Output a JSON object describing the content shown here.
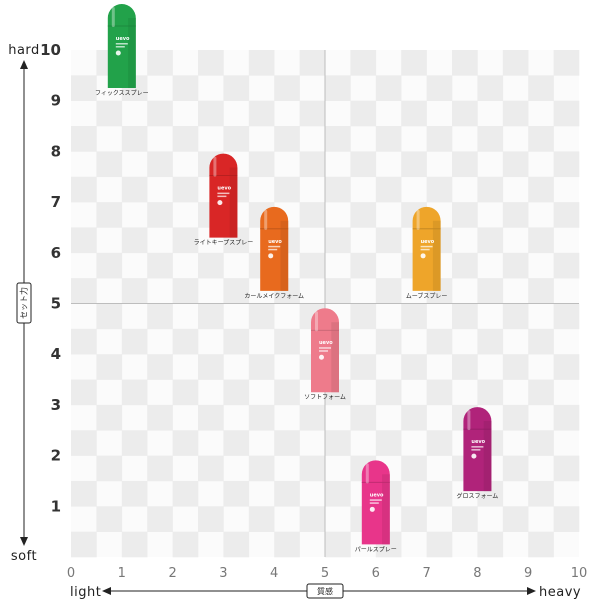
{
  "chart_data": {
    "type": "scatter",
    "xlim": [
      0,
      10
    ],
    "ylim": [
      0,
      10
    ],
    "x_ticks": [
      "0",
      "1",
      "2",
      "3",
      "4",
      "5",
      "6",
      "7",
      "8",
      "9",
      "10"
    ],
    "y_ticks": [
      "1",
      "2",
      "3",
      "4",
      "5",
      "6",
      "7",
      "8",
      "9",
      "10"
    ],
    "x_axis": {
      "start_label": "light",
      "end_label": "heavy",
      "name": "質感"
    },
    "y_axis": {
      "start_label": "soft",
      "end_label": "hard",
      "name": "セット力"
    },
    "grid": true,
    "quadrant_lines": {
      "x": 5,
      "y": 5
    },
    "brand_text": "uevo",
    "points": [
      {
        "label": "フィックススプレー",
        "x": 1,
        "y": 9.25,
        "color": "#22a24a"
      },
      {
        "label": "ライトキープスプレー",
        "x": 3,
        "y": 6.3,
        "color": "#d92626"
      },
      {
        "label": "カールメイクフォーム",
        "x": 4,
        "y": 5.25,
        "color": "#e86a1e"
      },
      {
        "label": "ムーブスプレー",
        "x": 7,
        "y": 5.25,
        "color": "#eea52a"
      },
      {
        "label": "ソフトフォーム",
        "x": 5,
        "y": 3.25,
        "color": "#ee7b8b"
      },
      {
        "label": "グロスフォーム",
        "x": 8,
        "y": 1.3,
        "color": "#b0237a"
      },
      {
        "label": "パールスプレー",
        "x": 6,
        "y": 0.25,
        "color": "#e8358a"
      }
    ]
  }
}
